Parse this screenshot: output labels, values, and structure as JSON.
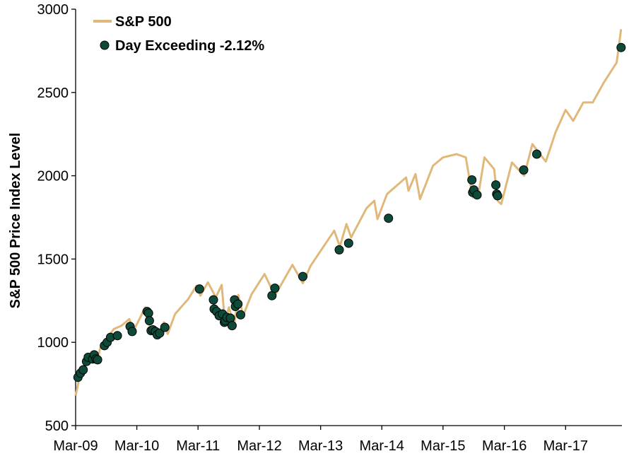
{
  "chart_data": {
    "type": "line",
    "title": "",
    "xlabel": "",
    "ylabel": "S&P 500 Price Index Level",
    "ylim": [
      500,
      3000
    ],
    "yticks": [
      500,
      1000,
      1500,
      2000,
      2500,
      3000
    ],
    "xlim": [
      "2009-03-01",
      "2018-01-31"
    ],
    "xticks": [
      {
        "date": "2009-03-01",
        "label": "Mar-09"
      },
      {
        "date": "2010-03-01",
        "label": "Mar-10"
      },
      {
        "date": "2011-03-01",
        "label": "Mar-11"
      },
      {
        "date": "2012-03-01",
        "label": "Mar-12"
      },
      {
        "date": "2013-03-01",
        "label": "Mar-13"
      },
      {
        "date": "2014-03-01",
        "label": "Mar-14"
      },
      {
        "date": "2015-03-01",
        "label": "Mar-15"
      },
      {
        "date": "2016-03-01",
        "label": "Mar-16"
      },
      {
        "date": "2017-03-01",
        "label": "Mar-17"
      }
    ],
    "grid": false,
    "legend": "top-left",
    "colors": {
      "line": "#E0B97A",
      "marker_fill": "#0E4A3A",
      "marker_stroke": "#000000",
      "axis": "#000000"
    },
    "series": [
      {
        "name": "S&P 500",
        "kind": "line",
        "points": [
          [
            "2009-03-01",
            680
          ],
          [
            "2009-03-20",
            770
          ],
          [
            "2009-04-15",
            850
          ],
          [
            "2009-05-10",
            910
          ],
          [
            "2009-06-10",
            940
          ],
          [
            "2009-07-10",
            900
          ],
          [
            "2009-08-01",
            990
          ],
          [
            "2009-09-01",
            1020
          ],
          [
            "2009-10-15",
            1080
          ],
          [
            "2009-11-30",
            1100
          ],
          [
            "2010-01-15",
            1140
          ],
          [
            "2010-02-10",
            1070
          ],
          [
            "2010-04-20",
            1210
          ],
          [
            "2010-05-25",
            1070
          ],
          [
            "2010-07-01",
            1030
          ],
          [
            "2010-08-10",
            1120
          ],
          [
            "2010-09-01",
            1050
          ],
          [
            "2010-10-15",
            1170
          ],
          [
            "2010-12-31",
            1258
          ],
          [
            "2011-02-20",
            1340
          ],
          [
            "2011-03-15",
            1280
          ],
          [
            "2011-04-29",
            1360
          ],
          [
            "2011-06-15",
            1270
          ],
          [
            "2011-07-20",
            1345
          ],
          [
            "2011-08-08",
            1120
          ],
          [
            "2011-09-01",
            1210
          ],
          [
            "2011-10-03",
            1100
          ],
          [
            "2011-10-27",
            1285
          ],
          [
            "2011-11-25",
            1160
          ],
          [
            "2012-01-15",
            1290
          ],
          [
            "2012-04-01",
            1410
          ],
          [
            "2012-06-01",
            1280
          ],
          [
            "2012-09-14",
            1465
          ],
          [
            "2012-11-15",
            1355
          ],
          [
            "2013-01-01",
            1460
          ],
          [
            "2013-05-21",
            1670
          ],
          [
            "2013-06-24",
            1575
          ],
          [
            "2013-08-02",
            1710
          ],
          [
            "2013-08-30",
            1630
          ],
          [
            "2013-11-30",
            1805
          ],
          [
            "2014-01-15",
            1850
          ],
          [
            "2014-02-03",
            1740
          ],
          [
            "2014-04-01",
            1890
          ],
          [
            "2014-07-24",
            1990
          ],
          [
            "2014-08-07",
            1910
          ],
          [
            "2014-09-18",
            2010
          ],
          [
            "2014-10-15",
            1860
          ],
          [
            "2014-12-31",
            2060
          ],
          [
            "2015-03-01",
            2110
          ],
          [
            "2015-05-21",
            2130
          ],
          [
            "2015-07-15",
            2110
          ],
          [
            "2015-08-25",
            1870
          ],
          [
            "2015-09-30",
            1900
          ],
          [
            "2015-11-03",
            2110
          ],
          [
            "2015-12-31",
            2040
          ],
          [
            "2016-01-20",
            1850
          ],
          [
            "2016-02-11",
            1830
          ],
          [
            "2016-04-15",
            2080
          ],
          [
            "2016-06-27",
            2000
          ],
          [
            "2016-08-15",
            2190
          ],
          [
            "2016-11-03",
            2085
          ],
          [
            "2016-12-31",
            2260
          ],
          [
            "2017-03-01",
            2395
          ],
          [
            "2017-04-15",
            2330
          ],
          [
            "2017-06-15",
            2440
          ],
          [
            "2017-08-10",
            2440
          ],
          [
            "2017-10-15",
            2560
          ],
          [
            "2017-12-31",
            2680
          ],
          [
            "2018-01-26",
            2880
          ]
        ]
      },
      {
        "name": "Day Exceeding -2.12%",
        "kind": "scatter",
        "points": [
          [
            "2009-03-15",
            790
          ],
          [
            "2009-03-30",
            815
          ],
          [
            "2009-04-15",
            835
          ],
          [
            "2009-05-05",
            885
          ],
          [
            "2009-05-15",
            910
          ],
          [
            "2009-06-10",
            900
          ],
          [
            "2009-06-20",
            925
          ],
          [
            "2009-07-01",
            900
          ],
          [
            "2009-07-10",
            895
          ],
          [
            "2009-08-20",
            980
          ],
          [
            "2009-09-05",
            1000
          ],
          [
            "2009-09-25",
            1030
          ],
          [
            "2009-11-05",
            1040
          ],
          [
            "2010-01-20",
            1095
          ],
          [
            "2010-02-01",
            1065
          ],
          [
            "2010-05-01",
            1185
          ],
          [
            "2010-05-10",
            1175
          ],
          [
            "2010-05-15",
            1130
          ],
          [
            "2010-05-25",
            1070
          ],
          [
            "2010-06-05",
            1075
          ],
          [
            "2010-06-20",
            1065
          ],
          [
            "2010-07-01",
            1045
          ],
          [
            "2010-07-15",
            1055
          ],
          [
            "2010-08-15",
            1090
          ],
          [
            "2011-03-10",
            1320
          ],
          [
            "2011-06-01",
            1255
          ],
          [
            "2011-06-05",
            1200
          ],
          [
            "2011-06-20",
            1185
          ],
          [
            "2011-07-05",
            1160
          ],
          [
            "2011-07-25",
            1170
          ],
          [
            "2011-08-05",
            1120
          ],
          [
            "2011-08-10",
            1130
          ],
          [
            "2011-08-20",
            1150
          ],
          [
            "2011-09-10",
            1145
          ],
          [
            "2011-09-20",
            1100
          ],
          [
            "2011-10-05",
            1255
          ],
          [
            "2011-10-10",
            1215
          ],
          [
            "2011-10-25",
            1230
          ],
          [
            "2011-11-10",
            1165
          ],
          [
            "2012-05-15",
            1280
          ],
          [
            "2012-06-01",
            1325
          ],
          [
            "2012-11-15",
            1395
          ],
          [
            "2013-06-20",
            1555
          ],
          [
            "2013-08-15",
            1595
          ],
          [
            "2014-04-10",
            1745
          ],
          [
            "2015-08-20",
            1975
          ],
          [
            "2015-08-25",
            1900
          ],
          [
            "2015-09-01",
            1915
          ],
          [
            "2015-09-20",
            1885
          ],
          [
            "2016-01-10",
            1945
          ],
          [
            "2016-01-15",
            1890
          ],
          [
            "2016-01-20",
            1880
          ],
          [
            "2016-06-24",
            2035
          ],
          [
            "2016-09-10",
            2130
          ],
          [
            "2018-01-26",
            2770
          ]
        ]
      }
    ]
  }
}
